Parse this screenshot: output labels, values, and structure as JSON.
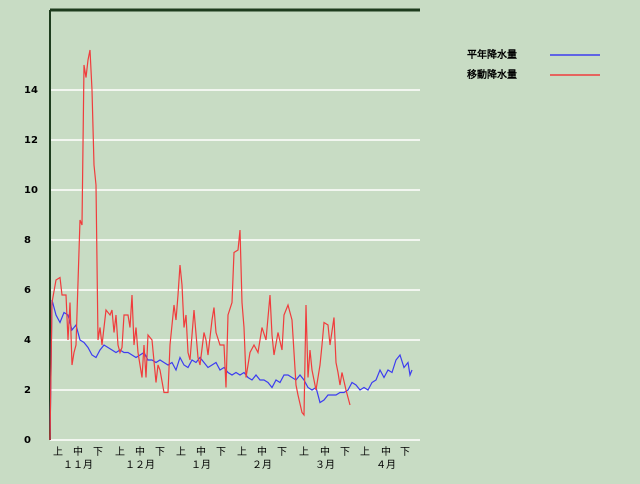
{
  "chart_data": {
    "type": "line",
    "xlim": [
      0,
      185
    ],
    "ylim": [
      0,
      17.2
    ],
    "yticks": [
      0,
      2,
      4,
      6,
      8,
      10,
      12,
      14
    ],
    "xticks": [
      {
        "value": 4,
        "label": "上"
      },
      {
        "value": 14,
        "label": "中"
      },
      {
        "value": 24,
        "label": "下"
      },
      {
        "value": 35,
        "label": "上"
      },
      {
        "value": 45,
        "label": "中"
      },
      {
        "value": 55,
        "label": "下"
      },
      {
        "value": 65.5,
        "label": "上"
      },
      {
        "value": 75.5,
        "label": "中"
      },
      {
        "value": 85.5,
        "label": "下"
      },
      {
        "value": 96,
        "label": "上"
      },
      {
        "value": 106,
        "label": "中"
      },
      {
        "value": 116,
        "label": "下"
      },
      {
        "value": 127,
        "label": "上"
      },
      {
        "value": 137.5,
        "label": "中"
      },
      {
        "value": 147.5,
        "label": "下"
      },
      {
        "value": 157.5,
        "label": "上"
      },
      {
        "value": 168,
        "label": "中"
      },
      {
        "value": 177.5,
        "label": "下"
      }
    ],
    "month_ticks": [
      {
        "value": 14,
        "label": "１１月"
      },
      {
        "value": 45,
        "label": "１２月"
      },
      {
        "value": 75.5,
        "label": "１月"
      },
      {
        "value": 106,
        "label": "２月"
      },
      {
        "value": 137.5,
        "label": "３月"
      },
      {
        "value": 168,
        "label": "４月"
      }
    ],
    "grid": true,
    "series": [
      {
        "name": "平年降水量",
        "color": "#3c3cf0",
        "x": [
          0,
          1,
          3,
          5,
          7,
          9,
          11,
          13,
          15,
          17,
          19,
          21,
          23,
          25,
          27,
          29,
          31,
          33,
          35,
          37,
          39,
          41,
          43,
          45,
          47,
          49,
          51,
          53,
          55,
          57,
          59,
          61,
          63,
          65,
          67,
          69,
          71,
          73,
          75,
          77,
          79,
          81,
          83,
          85,
          87,
          89,
          91,
          93,
          95,
          97,
          99,
          101,
          103,
          105,
          107,
          109,
          111,
          113,
          115,
          117,
          119,
          121,
          123,
          125,
          127,
          129,
          131,
          133,
          135,
          137,
          139,
          141,
          143,
          145,
          147,
          149,
          151,
          153,
          155,
          157,
          159,
          161,
          163,
          165,
          167,
          169,
          171,
          173,
          175,
          177,
          179,
          180,
          181
        ],
        "values": [
          0,
          5.6,
          5,
          4.7,
          5.1,
          5,
          4.4,
          4.6,
          4,
          3.9,
          3.7,
          3.4,
          3.3,
          3.6,
          3.8,
          3.7,
          3.6,
          3.5,
          3.6,
          3.5,
          3.5,
          3.4,
          3.3,
          3.4,
          3.5,
          3.2,
          3.2,
          3.1,
          3.2,
          3.1,
          3.0,
          3.1,
          2.8,
          3.3,
          3.0,
          2.9,
          3.2,
          3.1,
          3.3,
          3.1,
          2.9,
          3.0,
          3.1,
          2.8,
          2.9,
          2.7,
          2.6,
          2.7,
          2.6,
          2.7,
          2.5,
          2.4,
          2.6,
          2.4,
          2.4,
          2.3,
          2.1,
          2.4,
          2.3,
          2.6,
          2.6,
          2.5,
          2.4,
          2.6,
          2.4,
          2.1,
          2.0,
          2.1,
          1.5,
          1.6,
          1.8,
          1.8,
          1.8,
          1.9,
          1.9,
          2.0,
          2.3,
          2.2,
          2.0,
          2.1,
          2.0,
          2.3,
          2.4,
          2.8,
          2.5,
          2.8,
          2.7,
          3.2,
          3.4,
          2.9,
          3.1,
          2.6,
          2.8
        ]
      },
      {
        "name": "移動降水量",
        "color": "#f03c3c",
        "x": [
          0,
          1,
          3,
          5,
          6,
          8,
          9,
          10,
          11,
          12,
          13,
          15,
          16,
          17,
          18,
          19,
          20,
          21,
          22,
          23,
          24,
          25,
          26,
          28,
          30,
          31,
          32,
          33,
          34,
          35,
          36,
          37,
          39,
          40,
          41,
          42,
          43,
          44,
          46,
          47,
          48,
          49,
          51,
          53,
          54,
          55,
          57,
          59,
          60,
          62,
          63,
          64,
          65,
          66,
          67,
          68,
          69,
          70,
          72,
          74,
          75,
          77,
          78,
          79,
          81,
          82,
          83,
          85,
          87,
          88,
          89,
          91,
          92,
          94,
          95,
          96,
          97,
          98,
          100,
          102,
          104,
          106,
          108,
          110,
          111,
          112,
          114,
          116,
          117,
          119,
          121,
          123,
          124,
          126,
          127,
          128,
          129,
          130,
          131,
          133,
          135,
          136,
          137,
          139,
          140,
          142,
          143,
          144,
          145,
          146,
          148,
          150
        ],
        "values": [
          0,
          5.5,
          6.4,
          6.5,
          5.8,
          5.8,
          4,
          5.5,
          3,
          3.5,
          3.8,
          8.8,
          8.6,
          15,
          14.5,
          15.2,
          15.6,
          14,
          11,
          10.2,
          4,
          4.5,
          3.8,
          5.2,
          5,
          5.2,
          4.3,
          5,
          3.8,
          3.5,
          3.7,
          5,
          5,
          4.5,
          5.8,
          3.8,
          4.5,
          3.5,
          2.5,
          3.8,
          2.5,
          4.2,
          4,
          2.3,
          3,
          2.8,
          1.9,
          1.9,
          3.8,
          5.4,
          4.8,
          5.8,
          7,
          6.2,
          4.5,
          5,
          3.5,
          3.2,
          5.2,
          3.3,
          3,
          4.3,
          4,
          3.4,
          4.8,
          5.3,
          4.3,
          3.8,
          3.8,
          2.1,
          5,
          5.5,
          7.5,
          7.6,
          8.4,
          5.5,
          4.5,
          2.5,
          3.5,
          3.8,
          3.5,
          4.5,
          4,
          5.8,
          4.2,
          3.4,
          4.3,
          3.6,
          5,
          5.4,
          4.8,
          2.2,
          1.8,
          1.1,
          1,
          5.4,
          2.5,
          3.6,
          2.8,
          2,
          3,
          3.8,
          4.7,
          4.6,
          3.8,
          4.9,
          3.1,
          2.7,
          2.2,
          2.7,
          2,
          1.4
        ]
      }
    ]
  }
}
